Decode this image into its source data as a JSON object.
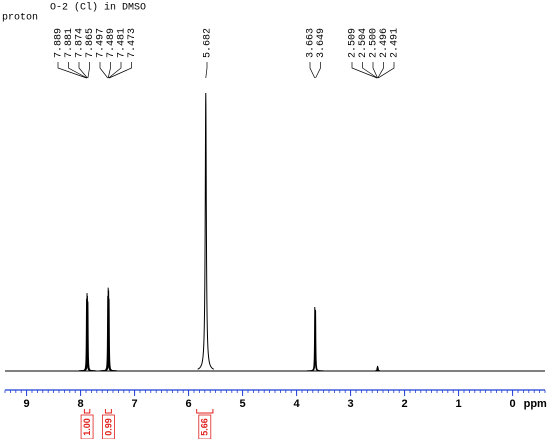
{
  "chart_data": {
    "type": "nmr",
    "title": "O-2 (Cl) in DMSO",
    "subtitle": "proton",
    "x_label": "ppm",
    "xlim": [
      9.4,
      -0.6
    ],
    "xticks": [
      9,
      8,
      7,
      6,
      5,
      4,
      3,
      2,
      1,
      0
    ],
    "ylim": [
      0,
      100
    ],
    "color": "#000000",
    "axis_color": "#1f3fd6",
    "x": [
      7.889,
      7.881,
      7.874,
      7.865,
      7.497,
      7.489,
      7.481,
      7.473,
      5.682,
      3.663,
      3.649,
      2.509,
      2.504,
      2.5,
      2.496,
      2.491
    ],
    "x_labels": [
      "7.889",
      "7.881",
      "7.874",
      "7.865",
      "7.497",
      "7.489",
      "7.481",
      "7.473",
      "5.682",
      "3.663",
      "3.649",
      "2.509",
      "2.504",
      "2.500",
      "2.496",
      "2.491"
    ],
    "values": [
      26,
      28,
      27,
      25,
      27,
      30,
      29,
      26,
      100,
      23,
      22,
      1,
      1.5,
      1.8,
      1.5,
      1
    ],
    "integrals": [
      {
        "value": 1,
        "label": "1.00",
        "from": 7.93,
        "to": 7.83
      },
      {
        "value": 0.99,
        "label": "0.99",
        "from": 7.54,
        "to": 7.43
      },
      {
        "value": 5.66,
        "label": "5.66",
        "from": 5.85,
        "to": 5.55
      }
    ],
    "integral_color": "#e0201c"
  }
}
